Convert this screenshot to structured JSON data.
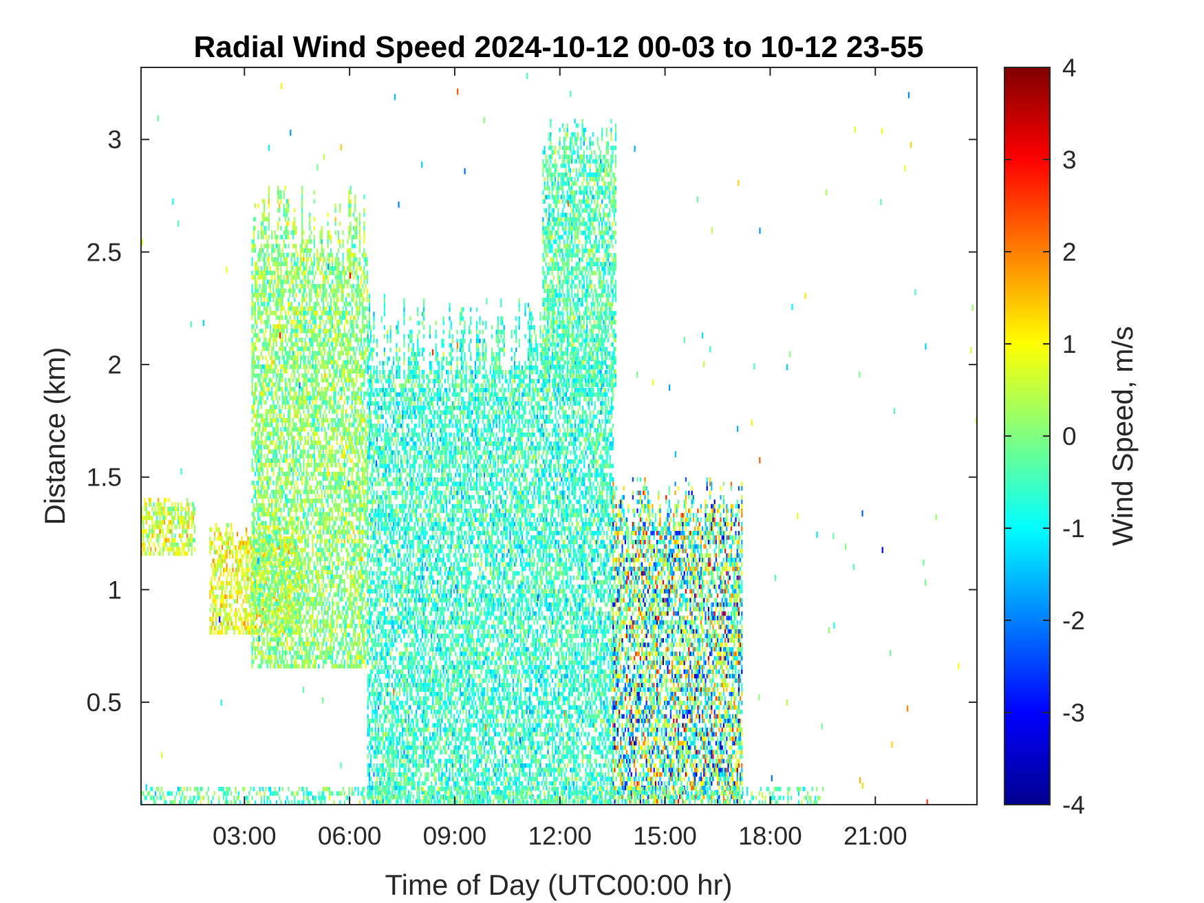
{
  "chart_data": {
    "type": "heatmap",
    "title": "Radial Wind Speed 2024-10-12 00-03 to 10-12 23-55",
    "xlabel": "Time of Day (UTC00:00 hr)",
    "ylabel": "Distance (km)",
    "xlim": [
      0.05,
      23.9
    ],
    "ylim": [
      0.045,
      3.32
    ],
    "x_ticks": [
      {
        "value": 3,
        "label": "03:00"
      },
      {
        "value": 6,
        "label": "06:00"
      },
      {
        "value": 9,
        "label": "09:00"
      },
      {
        "value": 12,
        "label": "12:00"
      },
      {
        "value": 15,
        "label": "15:00"
      },
      {
        "value": 18,
        "label": "18:00"
      },
      {
        "value": 21,
        "label": "21:00"
      }
    ],
    "y_ticks": [
      {
        "value": 0.5,
        "label": "0.5"
      },
      {
        "value": 1,
        "label": "1"
      },
      {
        "value": 1.5,
        "label": "1.5"
      },
      {
        "value": 2,
        "label": "2"
      },
      {
        "value": 2.5,
        "label": "2.5"
      },
      {
        "value": 3,
        "label": "3"
      }
    ],
    "colorbar": {
      "label": "Wind Speed, m/s",
      "colormap": "jet",
      "limits": [
        -4,
        4
      ],
      "ticks": [
        {
          "value": 4,
          "label": "4"
        },
        {
          "value": 3,
          "label": "3"
        },
        {
          "value": 2,
          "label": "2"
        },
        {
          "value": 1,
          "label": "1"
        },
        {
          "value": 0,
          "label": "0"
        },
        {
          "value": -1,
          "label": "-1"
        },
        {
          "value": -2,
          "label": "-2"
        },
        {
          "value": -3,
          "label": "-3"
        },
        {
          "value": -4,
          "label": "-4"
        }
      ]
    },
    "grid": false,
    "regions": [
      {
        "time_range": [
          0.05,
          1.6
        ],
        "distance_range": [
          1.15,
          1.4
        ],
        "mean_speed": 0.6
      },
      {
        "time_range": [
          2.0,
          4.6
        ],
        "distance_range": [
          0.8,
          1.3
        ],
        "mean_speed": 0.8
      },
      {
        "time_range": [
          3.2,
          6.5
        ],
        "distance_range": [
          0.65,
          2.8
        ],
        "mean_speed": 0.1
      },
      {
        "time_range": [
          6.5,
          13.5
        ],
        "distance_range": [
          0.05,
          2.3
        ],
        "mean_speed": -0.6
      },
      {
        "time_range": [
          11.5,
          13.6
        ],
        "distance_range": [
          1.9,
          3.1
        ],
        "mean_speed": -0.4
      },
      {
        "time_range": [
          13.5,
          17.2
        ],
        "distance_range": [
          0.05,
          1.5
        ],
        "mean_speed": -0.3
      },
      {
        "time_range": [
          0.05,
          19.5
        ],
        "distance_range": [
          0.045,
          0.12
        ],
        "mean_speed": -0.3
      }
    ]
  }
}
